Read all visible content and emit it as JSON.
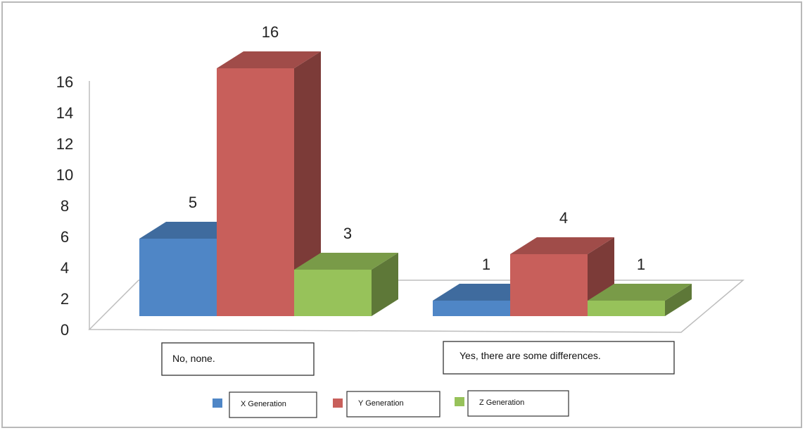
{
  "chart_data": {
    "type": "bar",
    "title": "",
    "xlabel": "",
    "ylabel": "",
    "ylim": [
      0,
      16
    ],
    "yticks": [
      0,
      2,
      4,
      6,
      8,
      10,
      12,
      14,
      16
    ],
    "grid": false,
    "legend_position": "bottom",
    "categories": [
      "No, none.",
      "Yes, there are some differences."
    ],
    "series": [
      {
        "name": "X Generation",
        "values": [
          5,
          1
        ],
        "color": "#4f86c6"
      },
      {
        "name": "Y Generation",
        "values": [
          16,
          4
        ],
        "color": "#c85f5b"
      },
      {
        "name": "Z Generation",
        "values": [
          3,
          1
        ],
        "color": "#97c25a"
      }
    ],
    "data_labels": [
      [
        "5",
        "16",
        "3"
      ],
      [
        "1",
        "4",
        "1"
      ]
    ]
  }
}
